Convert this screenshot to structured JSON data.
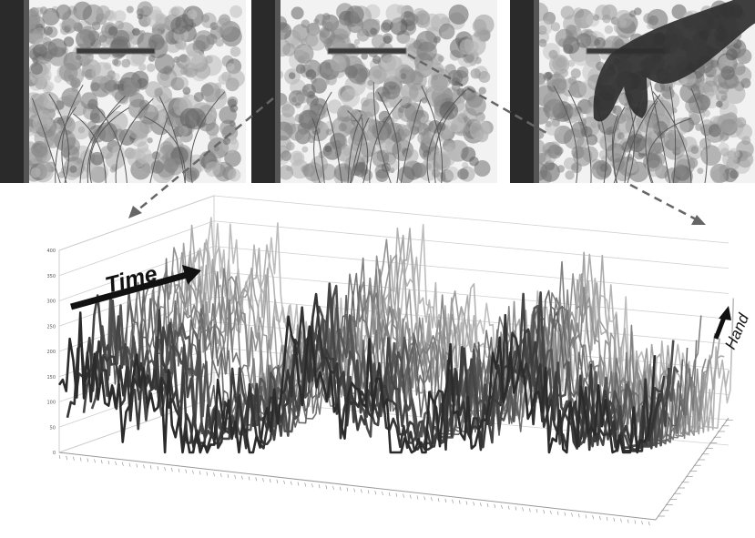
{
  "frames": [
    {
      "name": "frame-tree-1",
      "hand_present": false
    },
    {
      "name": "frame-tree-2",
      "hand_present": false
    },
    {
      "name": "frame-tree-3",
      "hand_present": true
    }
  ],
  "colors": {
    "line_dark": "#2b2b2b",
    "line_light": "#bdbdbd",
    "arrow": "#111111",
    "dash": "#666666",
    "grid": "#cfcfcf"
  },
  "annotations": {
    "time_label": "Time",
    "hand_label": "Hand"
  },
  "chart_data": {
    "type": "line",
    "style": "3d-waterfall",
    "ylim": [
      0,
      400
    ],
    "y_ticks": [
      "0",
      "50",
      "100",
      "150",
      "200",
      "250",
      "300",
      "350",
      "400"
    ],
    "series_count": 18,
    "points_per_series": 170,
    "grid": true,
    "legend": "right-side depth axis"
  }
}
